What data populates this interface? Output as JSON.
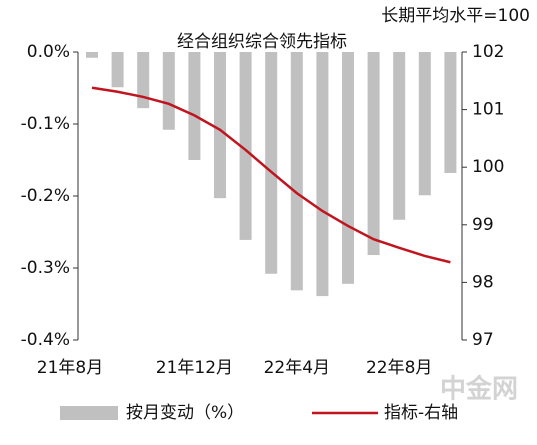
{
  "chart_data": {
    "type": "bar_line",
    "title": "经合组织综合领先指标",
    "subtitle": "长期平均水平=100",
    "watermark": "中金网",
    "categories": [
      "21年8月",
      null,
      null,
      null,
      "21年12月",
      null,
      null,
      null,
      "22年4月",
      null,
      null,
      null,
      "22年8月",
      null,
      null
    ],
    "series": [
      {
        "name": "按月变动（%）",
        "color": "#c0c0c0",
        "type": "bar",
        "values": [
          -0.008,
          -0.049,
          -0.078,
          -0.108,
          -0.15,
          -0.203,
          -0.261,
          -0.308,
          -0.331,
          -0.339,
          -0.322,
          -0.282,
          -0.233,
          -0.199,
          -0.168
        ]
      },
      {
        "name": "指标-右轴",
        "color": "#c0141e",
        "type": "line",
        "axis": "y2",
        "values": [
          101.38,
          101.31,
          101.22,
          101.1,
          100.9,
          100.65,
          100.3,
          99.92,
          99.55,
          99.24,
          98.98,
          98.75,
          98.6,
          98.46,
          98.35
        ]
      }
    ],
    "ylim": [
      -0.4,
      0
    ],
    "yticks": [
      {
        "value": 0,
        "label": "0.0%"
      },
      {
        "value": -0.1,
        "label": "-0.1%"
      },
      {
        "value": -0.2,
        "label": "-0.2%"
      },
      {
        "value": -0.3,
        "label": "-0.3%"
      },
      {
        "value": -0.4,
        "label": "-0.4%"
      }
    ],
    "y2lim": [
      97,
      102
    ],
    "y2ticks": [
      102,
      101,
      100,
      99,
      98,
      97
    ]
  }
}
